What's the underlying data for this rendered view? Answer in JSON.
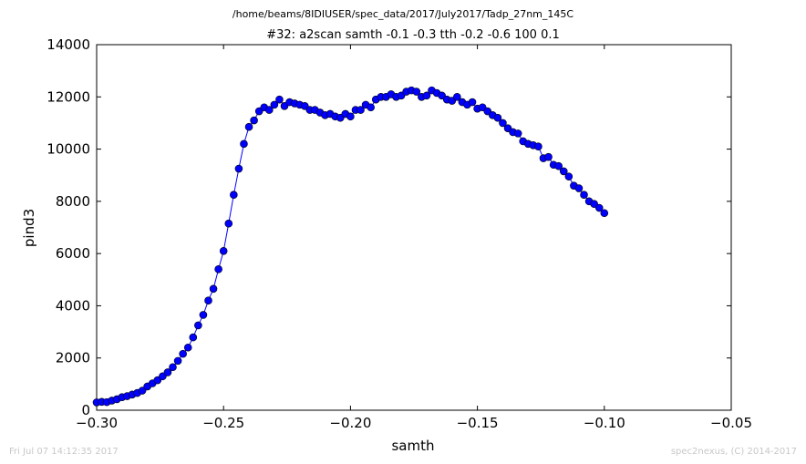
{
  "header": {
    "path": "/home/beams/8IDIUSER/spec_data/2017/July2017/Tadp_27nm_145C",
    "scan": "#32: a2scan  samth -0.1 -0.3  tth -0.2 -0.6  100 0.1"
  },
  "footer": {
    "timestamp": "Fri Jul 07 14:12:35 2017",
    "credit": "spec2nexus, (C) 2014-2017"
  },
  "chart_data": {
    "type": "line",
    "title": "#32: a2scan  samth -0.1 -0.3  tth -0.2 -0.6  100 0.1",
    "xlabel": "samth",
    "ylabel": "pind3",
    "xlim": [
      -0.3,
      -0.05
    ],
    "ylim": [
      0,
      14000
    ],
    "xticks": [
      -0.3,
      -0.25,
      -0.2,
      -0.15,
      -0.1,
      -0.05
    ],
    "xtick_labels": [
      "−0.30",
      "−0.25",
      "−0.20",
      "−0.15",
      "−0.10",
      "−0.05"
    ],
    "yticks": [
      0,
      2000,
      4000,
      6000,
      8000,
      10000,
      12000,
      14000
    ],
    "ytick_labels": [
      "0",
      "2000",
      "4000",
      "6000",
      "8000",
      "10000",
      "12000",
      "14000"
    ],
    "grid": false,
    "line_color": "#0000ff",
    "marker_color": "#0000ff",
    "series": [
      {
        "x": [
          -0.3,
          -0.298,
          -0.296,
          -0.294,
          -0.292,
          -0.29,
          -0.288,
          -0.286,
          -0.284,
          -0.282,
          -0.28,
          -0.278,
          -0.276,
          -0.274,
          -0.272,
          -0.27,
          -0.268,
          -0.266,
          -0.264,
          -0.262,
          -0.26,
          -0.258,
          -0.256,
          -0.254,
          -0.252,
          -0.25,
          -0.248,
          -0.246,
          -0.244,
          -0.242,
          -0.24,
          -0.238,
          -0.236,
          -0.234,
          -0.232,
          -0.23,
          -0.228,
          -0.226,
          -0.224,
          -0.222,
          -0.22,
          -0.218,
          -0.216,
          -0.214,
          -0.212,
          -0.21,
          -0.208,
          -0.206,
          -0.204,
          -0.202,
          -0.2,
          -0.198,
          -0.196,
          -0.194,
          -0.192,
          -0.19,
          -0.188,
          -0.186,
          -0.184,
          -0.182,
          -0.18,
          -0.178,
          -0.176,
          -0.174,
          -0.172,
          -0.17,
          -0.168,
          -0.166,
          -0.164,
          -0.162,
          -0.16,
          -0.158,
          -0.156,
          -0.154,
          -0.152,
          -0.15,
          -0.148,
          -0.146,
          -0.144,
          -0.142,
          -0.14,
          -0.138,
          -0.136,
          -0.134,
          -0.132,
          -0.13,
          -0.128,
          -0.126,
          -0.124,
          -0.122,
          -0.12,
          -0.118,
          -0.116,
          -0.114,
          -0.112,
          -0.11,
          -0.108,
          -0.106,
          -0.104,
          -0.102,
          -0.1
        ],
        "y": [
          300,
          320,
          310,
          370,
          420,
          500,
          540,
          600,
          660,
          750,
          910,
          1030,
          1150,
          1300,
          1450,
          1650,
          1890,
          2160,
          2400,
          2790,
          3250,
          3650,
          4200,
          4650,
          5400,
          6100,
          7150,
          8250,
          9250,
          10200,
          10850,
          11100,
          11450,
          11600,
          11500,
          11700,
          11900,
          11650,
          11800,
          11750,
          11700,
          11650,
          11500,
          11500,
          11400,
          11300,
          11350,
          11250,
          11200,
          11350,
          11250,
          11500,
          11500,
          11700,
          11600,
          11900,
          12000,
          12000,
          12100,
          12000,
          12050,
          12200,
          12250,
          12200,
          12000,
          12050,
          12250,
          12150,
          12050,
          11900,
          11850,
          12000,
          11800,
          11700,
          11800,
          11550,
          11600,
          11450,
          11300,
          11200,
          11000,
          10800,
          10650,
          10600,
          10300,
          10200,
          10150,
          10100,
          9650,
          9700,
          9400,
          9350,
          9150,
          8950,
          8600,
          8500,
          8250,
          8000,
          7900,
          7750,
          7550
        ]
      }
    ]
  }
}
